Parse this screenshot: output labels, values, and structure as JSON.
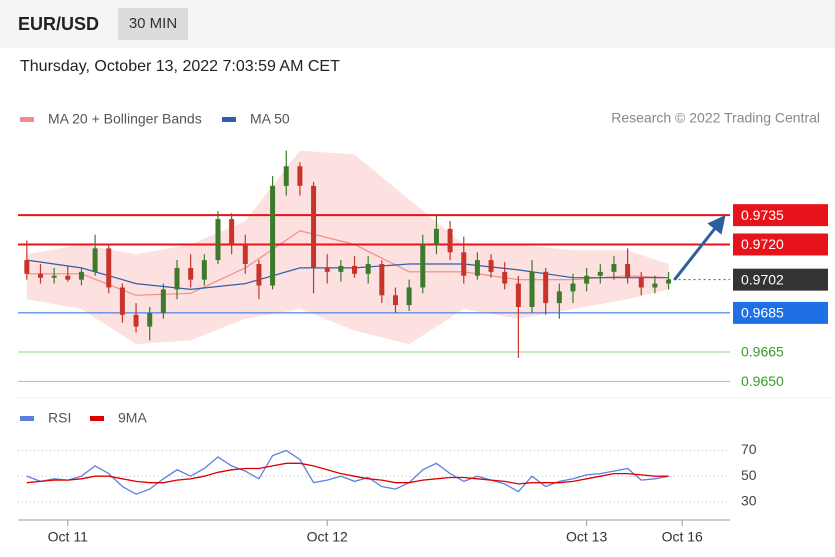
{
  "header": {
    "symbol": "EUR/USD",
    "interval": "30 MIN",
    "timestamp": "Thursday, October 13, 2022 7:03:59 AM CET"
  },
  "chart_data": [
    {
      "type": "candlestick",
      "source": "Research © 2022 Trading Central",
      "categories": [
        null,
        null,
        null,
        "Oct 11",
        null,
        null,
        null,
        null,
        null,
        null,
        null,
        null,
        null,
        null,
        null,
        null,
        null,
        null,
        null,
        null,
        null,
        null,
        "Oct 12",
        null,
        null,
        null,
        null,
        null,
        null,
        null,
        null,
        null,
        null,
        null,
        null,
        null,
        null,
        null,
        null,
        null,
        null,
        "Oct 13",
        null,
        null,
        null,
        null,
        null,
        null,
        "Oct 16",
        null,
        null,
        null
      ],
      "open": [
        0.9712,
        0.9705,
        0.9703,
        0.9704,
        0.9702,
        0.9706,
        0.9718,
        0.9698,
        0.9684,
        0.9678,
        0.9685,
        0.9697,
        0.9708,
        0.9702,
        0.9712,
        0.9733,
        0.972,
        0.971,
        0.9699,
        0.975,
        0.976,
        0.975,
        0.9708,
        0.9706,
        0.9709,
        0.9705,
        0.971,
        0.9694,
        0.9689,
        0.9698,
        0.972,
        0.9728,
        0.9716,
        0.9704,
        0.9712,
        0.9706,
        0.97,
        0.9688,
        0.9706,
        0.969,
        0.9696,
        0.97,
        0.9704,
        0.9706,
        0.971,
        0.9703,
        0.9698,
        0.97,
        null,
        null,
        null,
        null
      ],
      "high": [
        0.9722,
        0.971,
        0.9708,
        0.9709,
        0.9708,
        0.9725,
        0.972,
        0.97,
        0.969,
        0.9688,
        0.97,
        0.9712,
        0.9715,
        0.9715,
        0.9737,
        0.9736,
        0.9725,
        0.9712,
        0.9755,
        0.9768,
        0.9762,
        0.9752,
        0.9715,
        0.9712,
        0.9714,
        0.9714,
        0.9712,
        0.9698,
        0.9702,
        0.9725,
        0.9735,
        0.9732,
        0.9724,
        0.9716,
        0.9715,
        0.9711,
        0.9704,
        0.9712,
        0.9708,
        0.97,
        0.9705,
        0.9708,
        0.971,
        0.9714,
        0.9718,
        0.9706,
        0.9704,
        0.9706,
        null,
        null,
        null,
        null
      ],
      "low": [
        0.9702,
        0.97,
        0.97,
        0.9701,
        0.9699,
        0.9704,
        0.9695,
        0.968,
        0.9675,
        0.9671,
        0.9682,
        0.9692,
        0.9698,
        0.9699,
        0.971,
        0.9715,
        0.9705,
        0.9692,
        0.9697,
        0.9745,
        0.9745,
        0.9695,
        0.97,
        0.9701,
        0.9703,
        0.97,
        0.969,
        0.9685,
        0.9686,
        0.9695,
        0.9715,
        0.9712,
        0.97,
        0.9702,
        0.9703,
        0.9697,
        0.9662,
        0.9685,
        0.9684,
        0.9682,
        0.969,
        0.9696,
        0.97,
        0.9702,
        0.97,
        0.9694,
        0.9695,
        0.9697,
        null,
        null,
        null,
        null
      ],
      "close": [
        0.9705,
        0.9703,
        0.9704,
        0.9702,
        0.9706,
        0.9718,
        0.9698,
        0.9684,
        0.9678,
        0.9685,
        0.9697,
        0.9708,
        0.9702,
        0.9712,
        0.9733,
        0.972,
        0.971,
        0.9699,
        0.975,
        0.976,
        0.975,
        0.9708,
        0.9706,
        0.9709,
        0.9705,
        0.971,
        0.9694,
        0.9689,
        0.9698,
        0.972,
        0.9728,
        0.9716,
        0.9704,
        0.9712,
        0.9706,
        0.97,
        0.9688,
        0.9706,
        0.969,
        0.9696,
        0.97,
        0.9704,
        0.9706,
        0.971,
        0.9703,
        0.9698,
        0.97,
        0.9702,
        null,
        null,
        null,
        null
      ],
      "up_color": "#3d7a2c",
      "down_color": "#c8342a",
      "overlays": [
        {
          "name": "MA 20 + Bollinger Bands",
          "color": "#f28b8b",
          "band_color": "#fde0e0",
          "x": [
            0,
            4,
            8,
            12,
            16,
            20,
            24,
            28,
            32,
            36,
            40,
            44,
            47
          ],
          "upper": [
            0.9715,
            0.972,
            0.9715,
            0.972,
            0.9732,
            0.9768,
            0.9766,
            0.9743,
            0.972,
            0.972,
            0.9717,
            0.9717,
            0.971
          ],
          "lower": [
            0.9692,
            0.9687,
            0.9669,
            0.9671,
            0.9682,
            0.9687,
            0.9676,
            0.9669,
            0.9687,
            0.9682,
            0.9687,
            0.9692,
            0.9697
          ],
          "values": [
            0.9705,
            0.9705,
            0.9694,
            0.9695,
            0.9708,
            0.9727,
            0.972,
            0.9706,
            0.9706,
            0.9702,
            0.9702,
            0.9704,
            0.9703
          ]
        },
        {
          "name": "MA 50",
          "color": "#2f5fa8",
          "x": [
            0,
            4,
            8,
            12,
            16,
            20,
            24,
            28,
            32,
            36,
            40,
            44,
            47
          ],
          "values": [
            0.9712,
            0.9708,
            0.97,
            0.9697,
            0.97,
            0.9708,
            0.9708,
            0.971,
            0.971,
            0.9707,
            0.9703,
            0.9703,
            0.9703
          ]
        }
      ],
      "levels": [
        {
          "value": 0.9735,
          "label": "0.9735",
          "color": "#e8131a",
          "style": "box"
        },
        {
          "value": 0.972,
          "label": "0.9720",
          "color": "#e8131a",
          "style": "box"
        },
        {
          "value": 0.9702,
          "label": "0.9702",
          "color": "#333333",
          "style": "current"
        },
        {
          "value": 0.9685,
          "label": "0.9685",
          "color": "#1f6fe5",
          "style": "box"
        },
        {
          "value": 0.9665,
          "label": "0.9665",
          "color": "#3a9a2a",
          "style": "text"
        },
        {
          "value": 0.965,
          "label": "0.9650",
          "color": "#3a9a2a",
          "style": "text"
        }
      ],
      "ylim": [
        0.9643,
        0.9776
      ]
    },
    {
      "type": "line",
      "series": [
        {
          "name": "RSI",
          "color": "#5b80de",
          "values": [
            50,
            46,
            48,
            47,
            50,
            58,
            52,
            42,
            36,
            40,
            48,
            55,
            50,
            56,
            65,
            58,
            54,
            48,
            66,
            70,
            63,
            45,
            47,
            50,
            46,
            49,
            42,
            40,
            45,
            55,
            60,
            52,
            46,
            50,
            47,
            44,
            38,
            50,
            42,
            46,
            48,
            51,
            52,
            54,
            56,
            47,
            48,
            50,
            null,
            null,
            null,
            null
          ]
        },
        {
          "name": "9MA",
          "color": "#e00000",
          "values": [
            45,
            46,
            47,
            47,
            48,
            50,
            50,
            48,
            46,
            45,
            45,
            47,
            48,
            50,
            53,
            55,
            56,
            56,
            58,
            60,
            60,
            58,
            55,
            52,
            50,
            48,
            47,
            45,
            45,
            47,
            48,
            49,
            49,
            48,
            47,
            46,
            44,
            45,
            45,
            45,
            46,
            48,
            50,
            52,
            52,
            51,
            50,
            50,
            null,
            null,
            null,
            null
          ]
        }
      ],
      "ylim": [
        16,
        82
      ],
      "yticks": [
        70,
        50,
        30
      ],
      "grid": true
    }
  ]
}
